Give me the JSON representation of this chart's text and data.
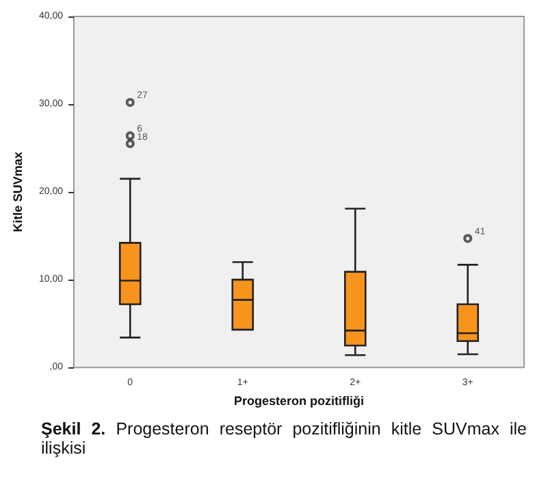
{
  "chart_data": {
    "type": "box",
    "xlabel": "Progesteron pozitifliği",
    "ylabel": "Kitle SUVmax",
    "categories": [
      "0",
      "1+",
      "2+",
      "3+"
    ],
    "color": "#f7941d",
    "boxes": [
      {
        "low": 3.4,
        "q1": 7.2,
        "median": 9.9,
        "q3": 14.2,
        "high": 21.5
      },
      {
        "low": 4.3,
        "q1": 4.3,
        "median": 7.7,
        "q3": 10.0,
        "high": 12.0
      },
      {
        "low": 1.4,
        "q1": 2.5,
        "median": 4.2,
        "q3": 10.9,
        "high": 18.1
      },
      {
        "low": 1.5,
        "q1": 3.0,
        "median": 3.9,
        "q3": 7.2,
        "high": 11.7
      }
    ],
    "series": [
      {
        "type": "scatter",
        "color": "#333333",
        "x": [
          "0",
          "0",
          "0",
          "3+"
        ],
        "values": [
          30.2,
          26.4,
          25.5,
          14.7
        ]
      }
    ],
    "marker": "circle",
    "ylim": [
      0,
      40
    ],
    "yticks": [
      {
        "value": 0,
        "label": ",00"
      },
      {
        "value": 10,
        "label": "10,00"
      },
      {
        "value": 20,
        "label": "20,00"
      },
      {
        "value": 30,
        "label": "30,00"
      },
      {
        "value": 40,
        "label": "40,00"
      }
    ],
    "grid": false,
    "annotations": [
      {
        "text": "27",
        "x": "0",
        "y": 30.2
      },
      {
        "text": "6",
        "x": "0",
        "y": 26.4
      },
      {
        "text": "18",
        "x": "0",
        "y": 25.5
      },
      {
        "text": "41",
        "x": "3+",
        "y": 14.7
      },
      "Şekil 2. Progesteron reseptör pozitifliğinin kitle SUVmax ile ilişkisi"
    ]
  }
}
